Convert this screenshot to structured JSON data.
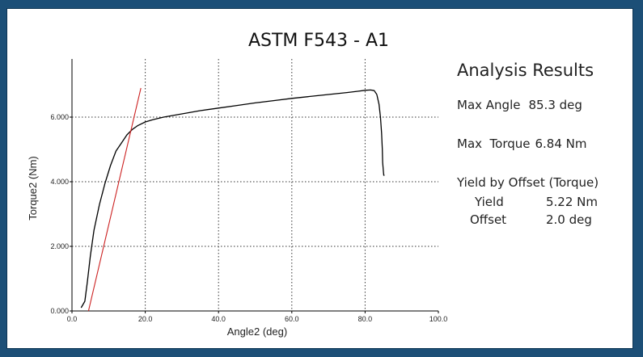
{
  "chart_data": {
    "type": "line",
    "title": "ASTM F543 - A1",
    "xlabel": "Angle2 (deg)",
    "ylabel": "Torque2 (Nm)",
    "xlim": [
      0,
      100
    ],
    "ylim": [
      0,
      7.8
    ],
    "x_ticks": [
      0,
      20,
      40,
      60,
      80,
      100
    ],
    "x_tick_labels": [
      "0.0",
      "20.0",
      "40.0",
      "60.0",
      "80.0",
      "100.0"
    ],
    "y_ticks": [
      0,
      2,
      4,
      6
    ],
    "y_tick_labels": [
      "0.000",
      "2.000",
      "4.000",
      "6.000"
    ],
    "grid": true,
    "grid_style": "dotted",
    "series": [
      {
        "color": "#000000",
        "x": [
          2.5,
          3.5,
          4.2,
          5,
          6,
          7.5,
          9,
          10.5,
          12,
          13.5,
          15,
          16.5,
          18,
          20,
          22,
          25,
          30,
          35,
          40,
          45,
          50,
          55,
          60,
          65,
          70,
          75,
          78,
          80,
          81.5,
          82.5,
          83.2,
          83.8,
          84.2,
          84.5,
          84.7,
          84.8,
          85.0,
          85.1,
          85.3
        ],
        "y": [
          0.1,
          0.3,
          0.9,
          1.7,
          2.5,
          3.3,
          3.95,
          4.5,
          4.95,
          5.2,
          5.45,
          5.62,
          5.74,
          5.85,
          5.92,
          6.0,
          6.1,
          6.2,
          6.28,
          6.36,
          6.44,
          6.51,
          6.58,
          6.64,
          6.7,
          6.76,
          6.8,
          6.83,
          6.84,
          6.82,
          6.7,
          6.4,
          6.0,
          5.5,
          5.0,
          4.6,
          4.3,
          4.2,
          4.2
        ]
      },
      {
        "color": "#cc2222",
        "x": [
          4.5,
          18.8
        ],
        "y": [
          0.0,
          6.9
        ]
      }
    ]
  },
  "results": {
    "title": "Analysis Results",
    "max_angle_label": "Max Angle",
    "max_angle_value": "85.3 deg",
    "max_torque_label": "Max  Torque",
    "max_torque_value": "6.84 Nm",
    "yield_title": "Yield by Offset (Torque)",
    "yield_label": "Yield",
    "yield_value": "5.22 Nm",
    "offset_label": "Offset",
    "offset_value": "2.0 deg"
  },
  "colors": {
    "frame": "#1c4f77",
    "curve": "#000000",
    "offset_line": "#cc2222"
  }
}
